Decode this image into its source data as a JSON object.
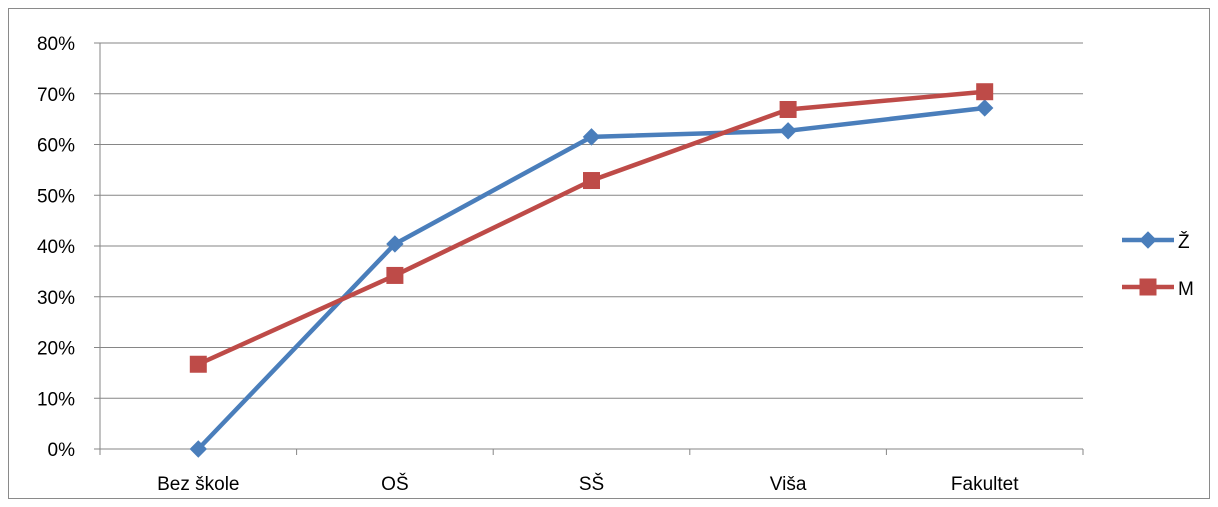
{
  "chart_data": {
    "type": "line",
    "categories": [
      "Bez škole",
      "OŠ",
      "SŠ",
      "Viša",
      "Fakultet"
    ],
    "y_ticks": [
      "0%",
      "10%",
      "20%",
      "30%",
      "40%",
      "50%",
      "60%",
      "70%",
      "80%"
    ],
    "ylim": [
      0,
      0.8
    ],
    "grid": true,
    "legend_position": "right",
    "series": [
      {
        "name": "Ž",
        "values": [
          0.0,
          0.404,
          0.615,
          0.627,
          0.672
        ],
        "color": "#4a7ebb",
        "marker": "diamond"
      },
      {
        "name": "M",
        "values": [
          0.167,
          0.342,
          0.529,
          0.669,
          0.704
        ],
        "color": "#be4b48",
        "marker": "square"
      }
    ]
  }
}
